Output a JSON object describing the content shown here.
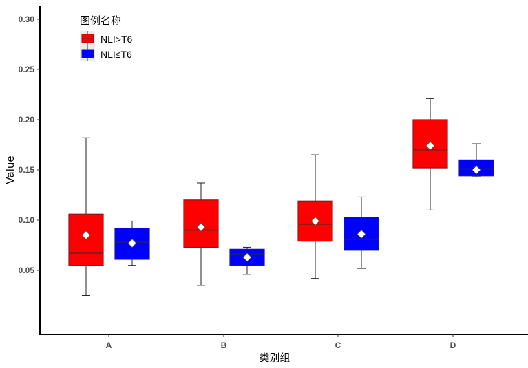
{
  "chart_data": {
    "type": "boxplot",
    "title": "",
    "xlabel": "类别组",
    "ylabel": "Value",
    "categories": [
      "A",
      "B",
      "C",
      "D"
    ],
    "yticks": [
      "0.05",
      "0.10",
      "0.15",
      "0.20",
      "0.25",
      "0.30"
    ],
    "ylim": [
      -0.014,
      0.315
    ],
    "grid": false,
    "legend": {
      "title": "图例名称",
      "position": "top-left-inside",
      "entries": [
        "NLI>T6",
        "NLI≤T6"
      ]
    },
    "colors": {
      "NLI>T6": "#ff0000",
      "NLI≤T6": "#0000ff"
    },
    "series": [
      {
        "name": "NLI>T6",
        "color": "#ff0000",
        "boxes": [
          {
            "category": "A",
            "whisker_low": 0.025,
            "q1": 0.055,
            "median": 0.067,
            "q3": 0.106,
            "whisker_high": 0.182,
            "mean": 0.085
          },
          {
            "category": "B",
            "whisker_low": 0.035,
            "q1": 0.073,
            "median": 0.09,
            "q3": 0.12,
            "whisker_high": 0.137,
            "mean": 0.093
          },
          {
            "category": "C",
            "whisker_low": 0.042,
            "q1": 0.079,
            "median": 0.096,
            "q3": 0.119,
            "whisker_high": 0.165,
            "mean": 0.099
          },
          {
            "category": "D",
            "whisker_low": 0.11,
            "q1": 0.152,
            "median": 0.17,
            "q3": 0.2,
            "whisker_high": 0.221,
            "mean": 0.174
          }
        ]
      },
      {
        "name": "NLI≤T6",
        "color": "#0000ff",
        "boxes": [
          {
            "category": "A",
            "whisker_low": 0.055,
            "q1": 0.061,
            "median": 0.078,
            "q3": 0.092,
            "whisker_high": 0.099,
            "mean": 0.077
          },
          {
            "category": "B",
            "whisker_low": 0.046,
            "q1": 0.055,
            "median": 0.066,
            "q3": 0.071,
            "whisker_high": 0.073,
            "mean": 0.063
          },
          {
            "category": "C",
            "whisker_low": 0.052,
            "q1": 0.07,
            "median": 0.081,
            "q3": 0.103,
            "whisker_high": 0.123,
            "mean": 0.086
          },
          {
            "category": "D",
            "whisker_low": 0.143,
            "q1": 0.144,
            "median": 0.151,
            "q3": 0.16,
            "whisker_high": 0.176,
            "mean": 0.15
          }
        ]
      }
    ]
  }
}
